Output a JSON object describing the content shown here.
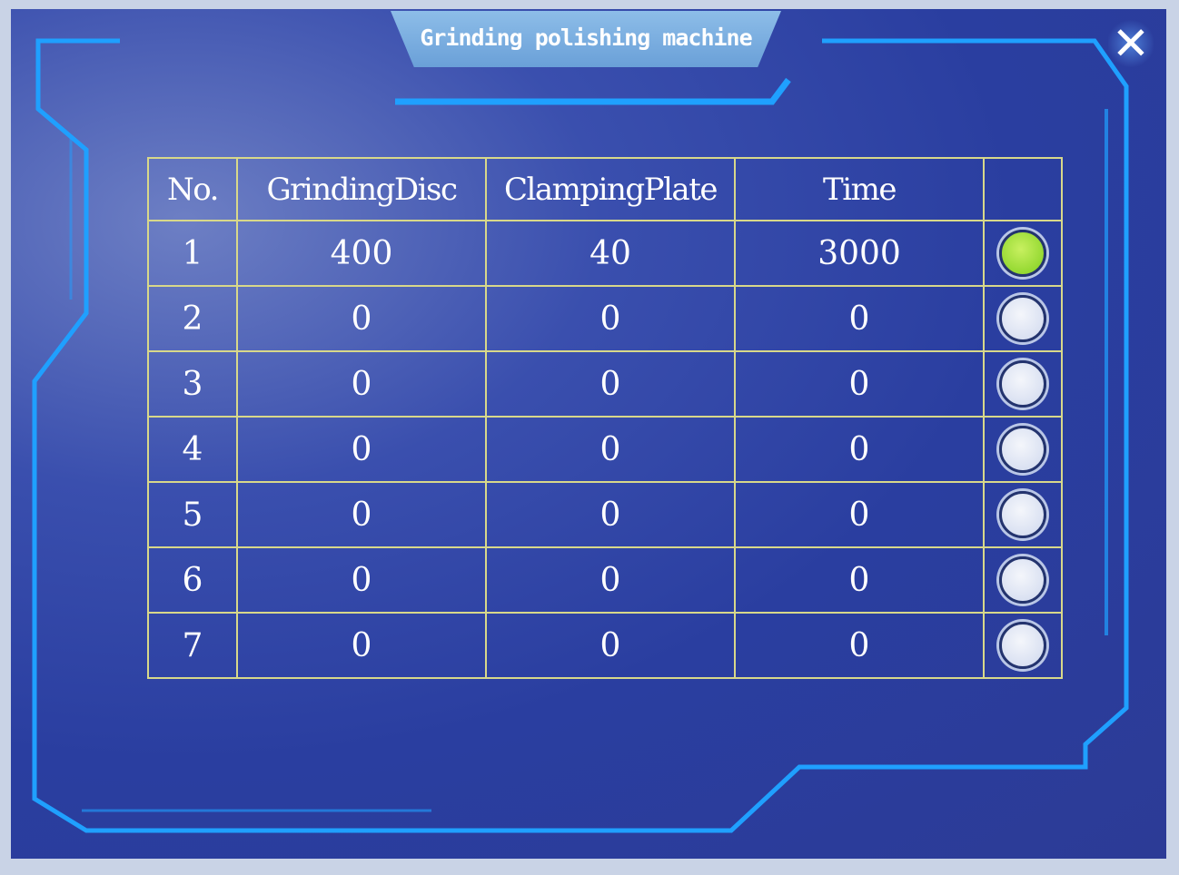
{
  "window": {
    "title": "Grinding polishing machine",
    "close_icon": "close-icon"
  },
  "colors": {
    "background": "#2c3e9e",
    "frame_lines": "#1fa0ff",
    "grid": "#d8d88a",
    "selected": "#7fcf1e"
  },
  "table": {
    "headers": [
      "No.",
      "GrindingDisc",
      "ClampingPlate",
      "Time",
      ""
    ],
    "rows": [
      {
        "no": "1",
        "disc": "400",
        "plate": "40",
        "time": "3000",
        "selected": true
      },
      {
        "no": "2",
        "disc": "0",
        "plate": "0",
        "time": "0",
        "selected": false
      },
      {
        "no": "3",
        "disc": "0",
        "plate": "0",
        "time": "0",
        "selected": false
      },
      {
        "no": "4",
        "disc": "0",
        "plate": "0",
        "time": "0",
        "selected": false
      },
      {
        "no": "5",
        "disc": "0",
        "plate": "0",
        "time": "0",
        "selected": false
      },
      {
        "no": "6",
        "disc": "0",
        "plate": "0",
        "time": "0",
        "selected": false
      },
      {
        "no": "7",
        "disc": "0",
        "plate": "0",
        "time": "0",
        "selected": false
      }
    ]
  }
}
